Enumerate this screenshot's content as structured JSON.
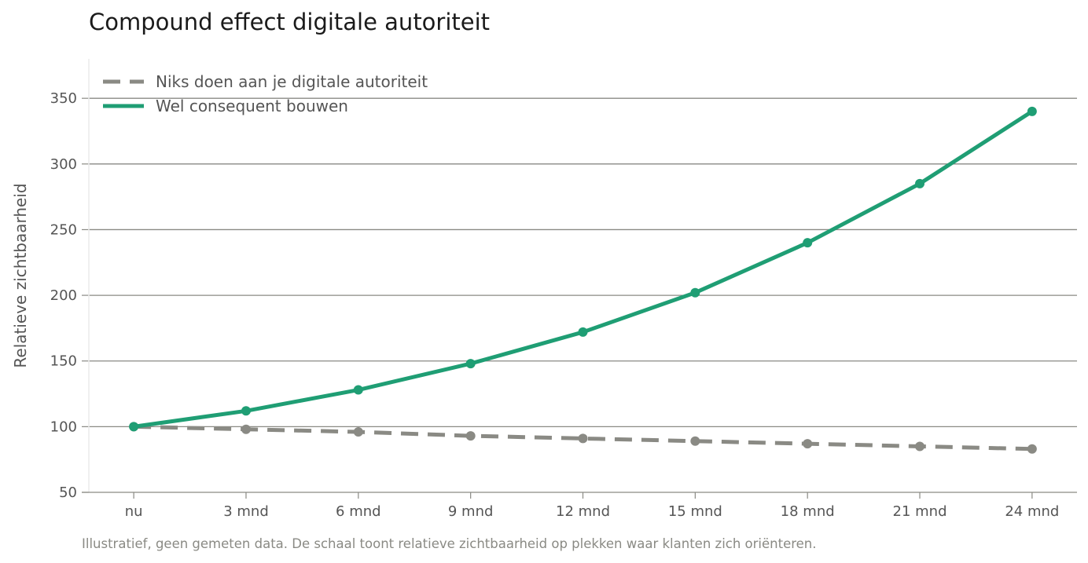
{
  "chart_data": {
    "type": "line",
    "title": "Compound effect digitale autoriteit",
    "xlabel": "",
    "ylabel": "Relatieve zichtbaarheid",
    "categories": [
      "nu",
      "3 mnd",
      "6 mnd",
      "9 mnd",
      "12 mnd",
      "15 mnd",
      "18 mnd",
      "21 mnd",
      "24 mnd"
    ],
    "ylim": [
      50,
      380
    ],
    "yticks": [
      50,
      100,
      150,
      200,
      250,
      300,
      350
    ],
    "grid": "horizontal",
    "legend_position": "top-left",
    "series": [
      {
        "name": "Niks doen aan je digitale autoriteit",
        "values": [
          100,
          98,
          96,
          93,
          91,
          89,
          87,
          85,
          83
        ],
        "color": "#8a8a84",
        "style": "dashed"
      },
      {
        "name": "Wel consequent bouwen",
        "values": [
          100,
          112,
          128,
          148,
          172,
          202,
          240,
          285,
          340
        ],
        "color": "#1f9e74",
        "style": "solid"
      }
    ],
    "footnote": "Illustratief, geen gemeten data. De schaal toont relatieve zichtbaarheid op plekken waar klanten zich oriënteren."
  }
}
